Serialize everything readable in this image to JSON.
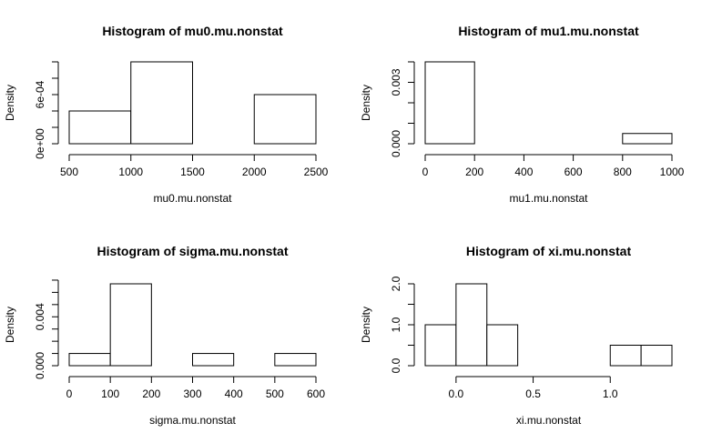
{
  "chart_data": [
    {
      "type": "bar",
      "title": "Histogram of mu0.mu.nonstat",
      "xlabel": "mu0.mu.nonstat",
      "ylabel": "Density",
      "bin_edges": [
        500,
        1000,
        1500,
        2000,
        2500
      ],
      "values": [
        0.0004,
        0.001,
        0.0,
        0.0006
      ],
      "xticks": [
        500,
        1000,
        1500,
        2000,
        2500
      ],
      "xtick_labels": [
        "500",
        "1000",
        "1500",
        "2000",
        "2500"
      ],
      "yticks": [
        0,
        0.0002,
        0.0004,
        0.0006,
        0.0008,
        0.001
      ],
      "ytick_labels": [
        "0e+00",
        "",
        "",
        "6e-04",
        "",
        ""
      ],
      "ylim": [
        0,
        0.001
      ]
    },
    {
      "type": "bar",
      "title": "Histogram of mu1.mu.nonstat",
      "xlabel": "mu1.mu.nonstat",
      "ylabel": "Density",
      "bin_edges": [
        0,
        200,
        400,
        600,
        800,
        1000
      ],
      "values": [
        0.004,
        0.0,
        0.0,
        0.0,
        0.0005
      ],
      "xticks": [
        0,
        200,
        400,
        600,
        800,
        1000
      ],
      "xtick_labels": [
        "0",
        "200",
        "400",
        "600",
        "800",
        "1000"
      ],
      "yticks": [
        0,
        0.001,
        0.002,
        0.003,
        0.004
      ],
      "ytick_labels": [
        "0.000",
        "",
        "",
        "0.003",
        ""
      ],
      "ylim": [
        0,
        0.004
      ]
    },
    {
      "type": "bar",
      "title": "Histogram of sigma.mu.nonstat",
      "xlabel": "sigma.mu.nonstat",
      "ylabel": "Density",
      "bin_edges": [
        0,
        100,
        200,
        300,
        400,
        500,
        600
      ],
      "values": [
        0.001,
        0.0067,
        0.0,
        0.001,
        0.0,
        0.001
      ],
      "xticks": [
        0,
        100,
        200,
        300,
        400,
        500,
        600
      ],
      "xtick_labels": [
        "0",
        "100",
        "200",
        "300",
        "400",
        "500",
        "600"
      ],
      "yticks": [
        0,
        0.001,
        0.002,
        0.003,
        0.004,
        0.005,
        0.006,
        0.007
      ],
      "ytick_labels": [
        "0.000",
        "",
        "",
        "",
        "0.004",
        "",
        "",
        ""
      ],
      "ylim": [
        0,
        0.0067
      ]
    },
    {
      "type": "bar",
      "title": "Histogram of xi.mu.nonstat",
      "xlabel": "xi.mu.nonstat",
      "ylabel": "Density",
      "bin_edges": [
        -0.2,
        0.0,
        0.2,
        0.4,
        0.6,
        0.8,
        1.0,
        1.2,
        1.4
      ],
      "values": [
        1.0,
        2.0,
        1.0,
        0.0,
        0.0,
        0.0,
        0.5,
        0.5
      ],
      "xticks": [
        0.0,
        0.5,
        1.0
      ],
      "xtick_labels": [
        "0.0",
        "0.5",
        "1.0"
      ],
      "yticks": [
        0,
        0.5,
        1.0,
        1.5,
        2.0
      ],
      "ytick_labels": [
        "0.0",
        "",
        "1.0",
        "",
        "2.0"
      ],
      "ylim": [
        0,
        2.0
      ]
    }
  ]
}
